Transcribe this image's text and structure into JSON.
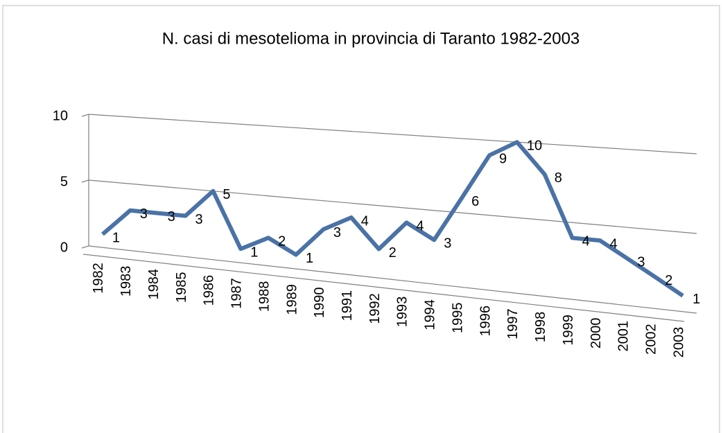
{
  "chart_data": {
    "type": "line",
    "title": "N. casi di mesotelioma in provincia di Taranto 1982-2003",
    "categories": [
      "1982",
      "1983",
      "1984",
      "1985",
      "1986",
      "1987",
      "1988",
      "1989",
      "1990",
      "1991",
      "1992",
      "1993",
      "1994",
      "1995",
      "1996",
      "1997",
      "1998",
      "1999",
      "2000",
      "2001",
      "2002",
      "2003"
    ],
    "series": [
      {
        "name": "N. casi",
        "color": "#4a72a6",
        "values": [
          1,
          3,
          3,
          3,
          5,
          1,
          2,
          1,
          3,
          4,
          2,
          4,
          3,
          6,
          9,
          10,
          8,
          4,
          4,
          3,
          2,
          1
        ]
      }
    ],
    "ylim": [
      0,
      10
    ],
    "yticks": [
      0,
      5,
      10
    ],
    "grid": true
  }
}
